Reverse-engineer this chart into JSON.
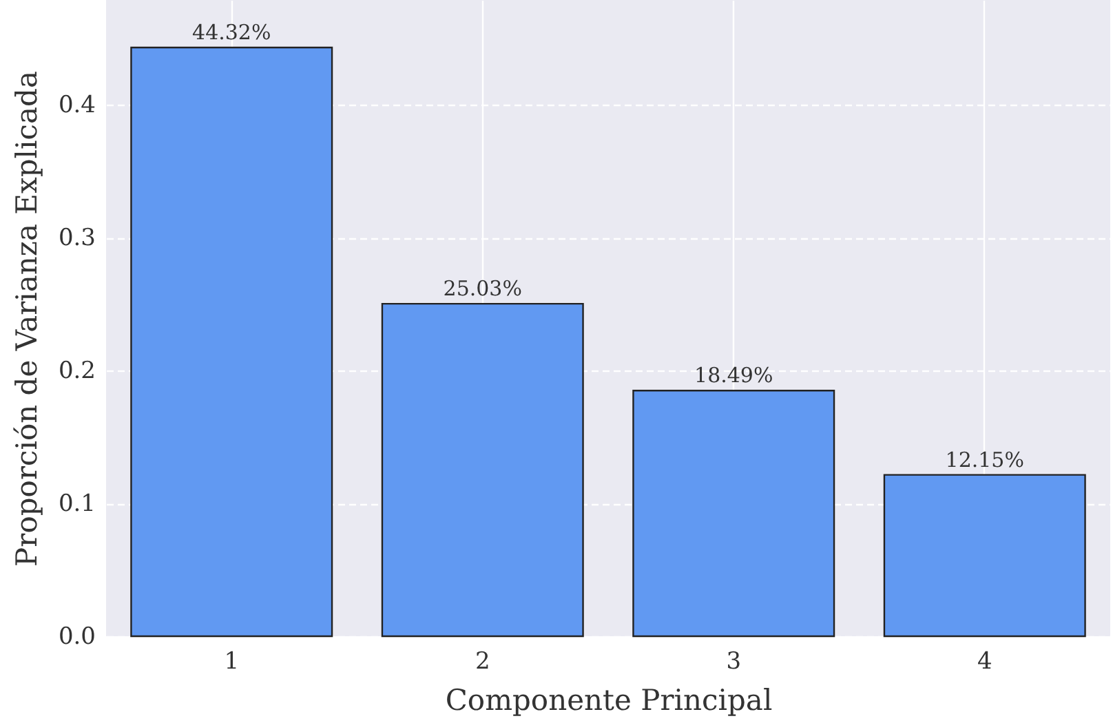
{
  "chart_data": {
    "type": "bar",
    "xlabel": "Componente Principal",
    "ylabel": "Proporción de Varianza Explicada",
    "categories": [
      "1",
      "2",
      "3",
      "4"
    ],
    "values": [
      0.4432,
      0.2503,
      0.1849,
      0.1215
    ],
    "value_labels": [
      "44.32%",
      "25.03%",
      "18.49%",
      "12.15%"
    ],
    "color": "#6199f2",
    "ylim": [
      0,
      0.479
    ],
    "yticks": [
      {
        "value": 0,
        "label": "0.0"
      },
      {
        "value": 0.1,
        "label": "0.1"
      },
      {
        "value": 0.2,
        "label": "0.2"
      },
      {
        "value": 0.3,
        "label": "0.3"
      },
      {
        "value": 0.4,
        "label": "0.4"
      }
    ],
    "grid": true
  }
}
